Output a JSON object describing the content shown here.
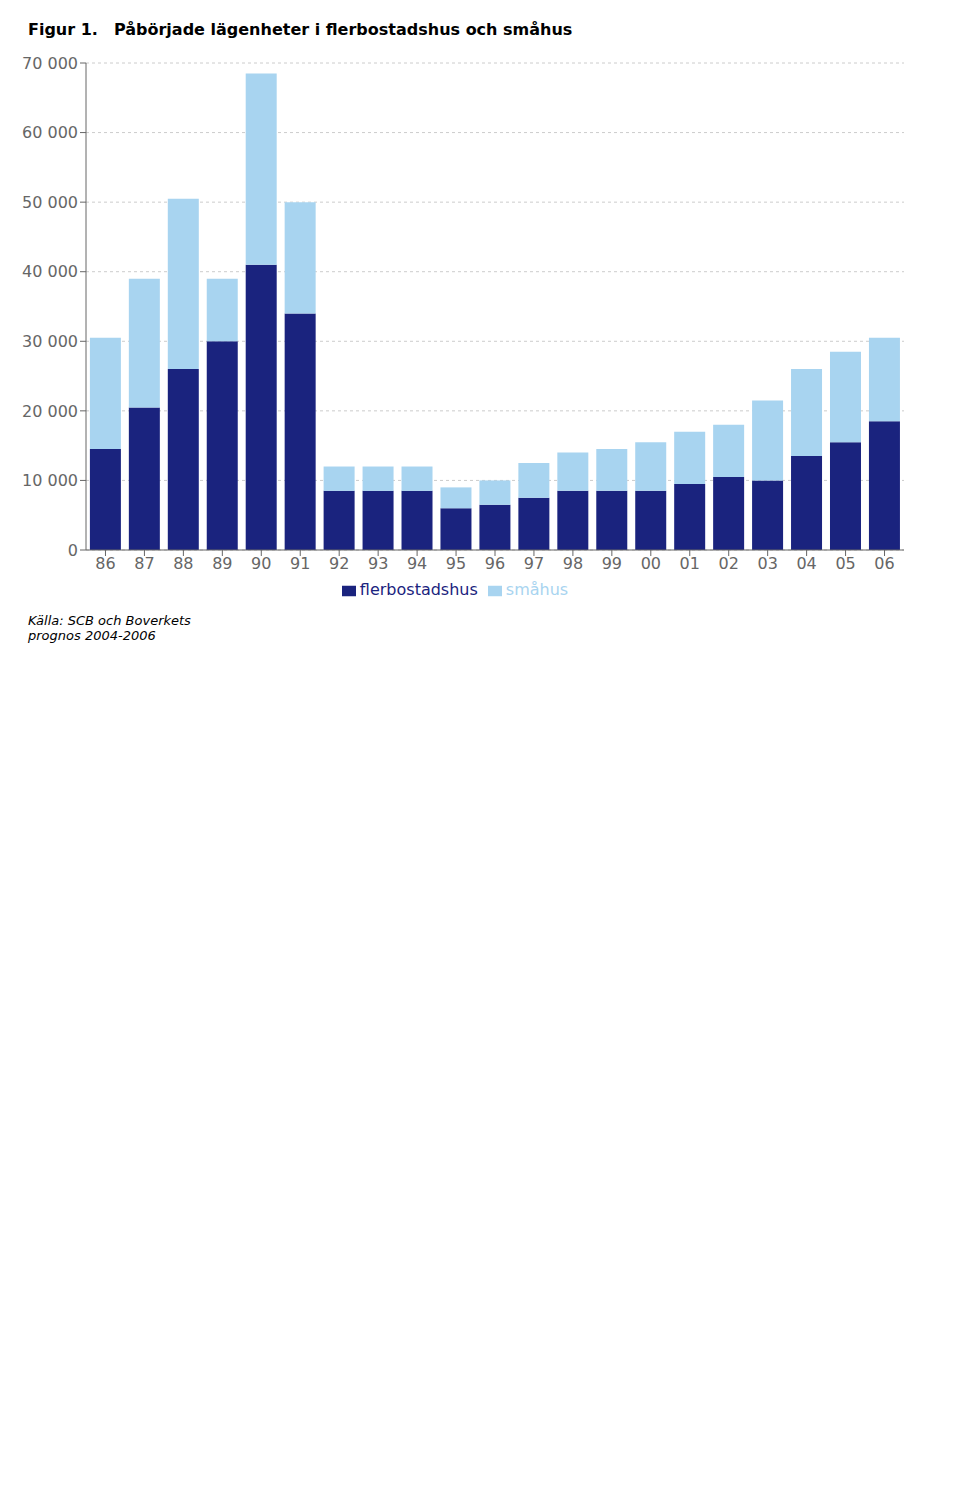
{
  "chart_data": {
    "type": "bar",
    "title": "Påbörjade lägenheter i flerbostadshus och småhus",
    "subtitle": "Figur 1.",
    "annotations": [
      "Källa: SCB och Boverkets\nprognos 2004-2006"
    ],
    "categories": [
      "86",
      "87",
      "88",
      "89",
      "90",
      "91",
      "92",
      "93",
      "94",
      "95",
      "96",
      "97",
      "98",
      "99",
      "00",
      "01",
      "02",
      "03",
      "04",
      "05",
      "06"
    ],
    "series": [
      {
        "name": "flerbostadshus",
        "color": "#1a237e",
        "values": [
          14500,
          20500,
          26000,
          30000,
          41000,
          34000,
          8500,
          8500,
          8500,
          6000,
          6500,
          7500,
          8500,
          8500,
          8500,
          9500,
          10500,
          10000,
          13500,
          15500,
          18500
        ]
      },
      {
        "name": "småhus",
        "color": "#a8d4f0",
        "values": [
          16000,
          18500,
          24500,
          9000,
          27500,
          16000,
          3500,
          3500,
          3500,
          3000,
          3500,
          5000,
          5500,
          6000,
          7000,
          7500,
          7500,
          11500,
          12500,
          13000,
          12000
        ]
      }
    ],
    "stacked": true,
    "ylim": [
      0,
      70000
    ],
    "yticks": [
      0,
      {
        "value": 10000,
        "label": "10 000"
      },
      {
        "value": 20000,
        "label": "20 000"
      },
      {
        "value": 30000,
        "label": "30 000"
      },
      {
        "value": 40000,
        "label": "40 000"
      },
      {
        "value": 50000,
        "label": "50 000"
      },
      {
        "value": 60000,
        "label": "60 000"
      },
      {
        "value": 70000,
        "label": "70 000"
      }
    ],
    "grid": true,
    "legend": "bottom"
  }
}
